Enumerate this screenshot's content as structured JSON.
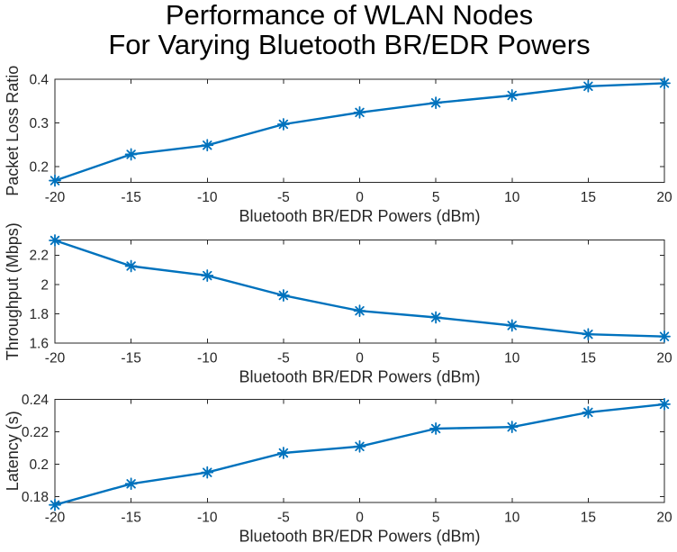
{
  "figure": {
    "title_line1": "Performance of WLAN Nodes",
    "title_line2": "For Varying Bluetooth BR/EDR Powers"
  },
  "colors": {
    "line": "#0072BD",
    "axis": "#262626",
    "text": "#262626",
    "title": "#000000",
    "background": "#ffffff"
  },
  "chart_data": {
    "type": "line",
    "marker": "asterisk",
    "grid": false,
    "legend": null,
    "x": [
      -20,
      -15,
      -10,
      -5,
      0,
      5,
      10,
      15,
      20
    ],
    "xlim": [
      -20,
      20
    ],
    "xtick_labels": [
      "-20",
      "-15",
      "-10",
      "-5",
      "0",
      "5",
      "10",
      "15",
      "20"
    ],
    "xlabel": "Bluetooth BR/EDR Powers (dBm)",
    "subplots": [
      {
        "id": "packet-loss-ratio",
        "ylabel": "Packet Loss Ratio",
        "values": [
          0.168,
          0.228,
          0.249,
          0.297,
          0.324,
          0.346,
          0.363,
          0.384,
          0.391
        ],
        "ylim": [
          0.164,
          0.4
        ],
        "yticks": [
          0.2,
          0.3,
          0.4
        ],
        "ytick_labels": [
          "0.2",
          "0.3",
          "0.4"
        ]
      },
      {
        "id": "throughput",
        "ylabel": "Throughput (Mbps)",
        "values": [
          2.3,
          2.125,
          2.06,
          1.925,
          1.82,
          1.775,
          1.72,
          1.66,
          1.645
        ],
        "ylim": [
          1.6,
          2.303
        ],
        "yticks": [
          1.6,
          1.8,
          2.0,
          2.2
        ],
        "ytick_labels": [
          "1.6",
          "1.8",
          "2",
          "2.2"
        ]
      },
      {
        "id": "latency",
        "ylabel": "Latency (s)",
        "values": [
          0.175,
          0.188,
          0.195,
          0.207,
          0.211,
          0.222,
          0.223,
          0.232,
          0.237
        ],
        "ylim": [
          0.1765,
          0.24
        ],
        "yticks": [
          0.18,
          0.2,
          0.22,
          0.24
        ],
        "ytick_labels": [
          "0.18",
          "0.2",
          "0.22",
          "0.24"
        ]
      }
    ]
  }
}
